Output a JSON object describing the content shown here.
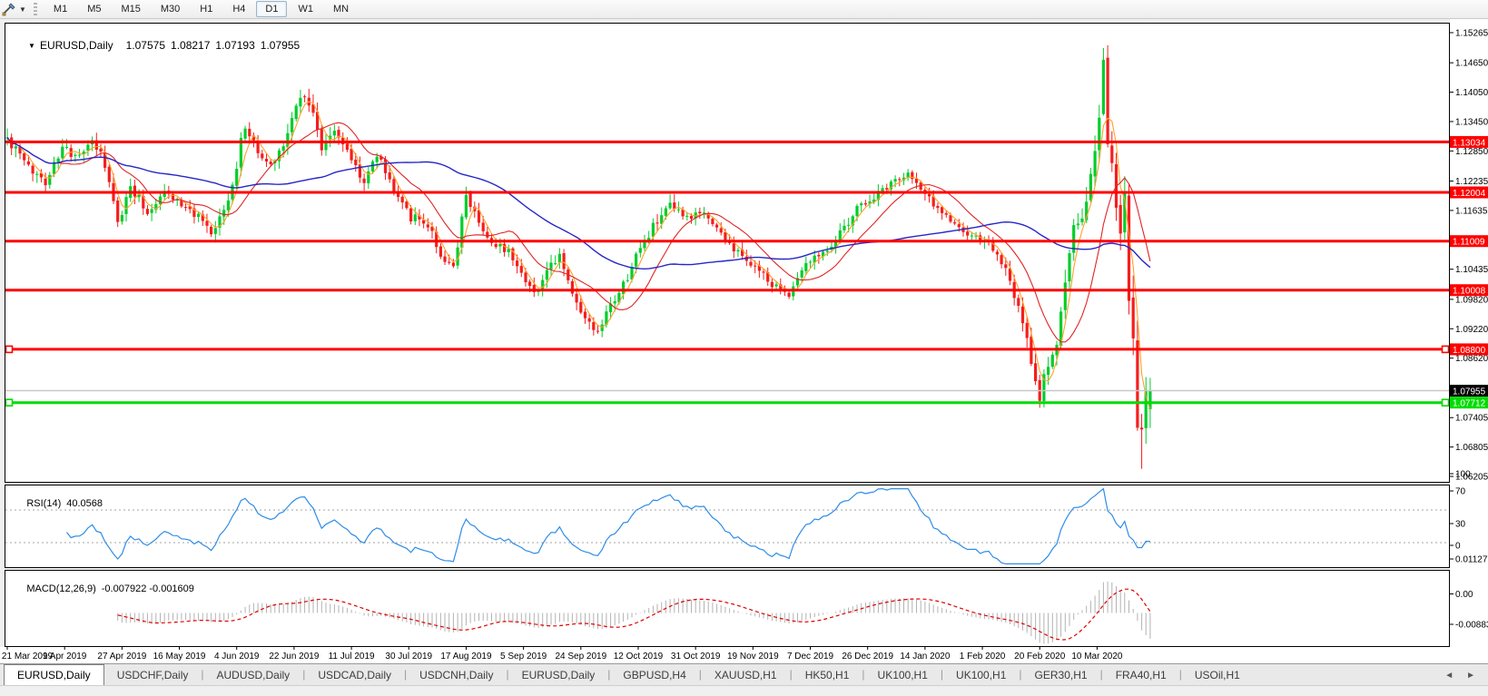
{
  "toolbar": {
    "caret": "▼",
    "periods": [
      "M1",
      "M5",
      "M15",
      "M30",
      "H1",
      "H4",
      "D1",
      "W1",
      "MN"
    ],
    "active_period": "D1"
  },
  "chart": {
    "caret": "▼",
    "title": "EURUSD,Daily",
    "ohlc": {
      "open": "1.07575",
      "high": "1.08217",
      "low": "1.07193",
      "close": "1.07955"
    },
    "colors": {
      "bull": "#00cd2c",
      "bear": "#f51d1d",
      "ma_fast": "#ffa228",
      "ma_medium": "#e02424",
      "ma_slow": "#2626c8",
      "sr_line": "#ff0000",
      "trend_line_green": "#00dc00",
      "price_line": "#c8c8c8",
      "rsi_line": "#2e8ce8",
      "macd_hist": "#b2b2b2",
      "macd_signal": "#e00000"
    }
  },
  "chart_data": {
    "type": "candlestick",
    "symbol": "EURUSD",
    "timeframe": "Daily",
    "title": "EURUSD,Daily 1.07575 1.08217 1.07193 1.07955",
    "last_candle": {
      "open": 1.07575,
      "high": 1.08217,
      "low": 1.07193,
      "close": 1.07955
    },
    "visible_range": {
      "price_max": 1.1545,
      "price_min": 1.06094
    },
    "extremes": {
      "spike_high": 1.1495,
      "crash_low": 1.0636
    },
    "n_candles": 270,
    "candles_per_date_tick": 13.5,
    "close_path_anchors": [
      [
        0,
        1.131,
        1.0
      ],
      [
        5,
        1.125,
        0.9
      ],
      [
        9,
        1.1225,
        0.9
      ],
      [
        13,
        1.129,
        0.8
      ],
      [
        17,
        1.127,
        0.7
      ],
      [
        20,
        1.131,
        0.8
      ],
      [
        23,
        1.1255,
        0.9
      ],
      [
        26,
        1.1135,
        1.0
      ],
      [
        29,
        1.1215,
        0.8
      ],
      [
        33,
        1.116,
        0.8
      ],
      [
        37,
        1.1205,
        0.7
      ],
      [
        41,
        1.1175,
        0.7
      ],
      [
        45,
        1.115,
        0.7
      ],
      [
        48,
        1.111,
        0.8
      ],
      [
        52,
        1.118,
        0.9
      ],
      [
        56,
        1.134,
        1.1
      ],
      [
        59,
        1.128,
        0.9
      ],
      [
        62,
        1.1255,
        0.8
      ],
      [
        66,
        1.132,
        0.9
      ],
      [
        69,
        1.1405,
        1.1
      ],
      [
        72,
        1.137,
        1.0
      ],
      [
        74,
        1.1285,
        0.9
      ],
      [
        77,
        1.133,
        0.8
      ],
      [
        81,
        1.127,
        0.8
      ],
      [
        84,
        1.122,
        0.8
      ],
      [
        87,
        1.128,
        0.7
      ],
      [
        90,
        1.1225,
        0.7
      ],
      [
        95,
        1.115,
        0.8
      ],
      [
        99,
        1.1135,
        0.7
      ],
      [
        103,
        1.1055,
        0.9
      ],
      [
        105,
        1.104,
        0.9
      ],
      [
        108,
        1.1195,
        0.9
      ],
      [
        111,
        1.1145,
        0.8
      ],
      [
        114,
        1.109,
        0.8
      ],
      [
        118,
        1.1085,
        0.7
      ],
      [
        121,
        1.104,
        0.7
      ],
      [
        124,
        1.0995,
        0.8
      ],
      [
        127,
        1.1035,
        0.8
      ],
      [
        130,
        1.1075,
        0.7
      ],
      [
        133,
        1.099,
        0.7
      ],
      [
        136,
        1.094,
        0.8
      ],
      [
        139,
        1.0905,
        0.9
      ],
      [
        141,
        1.095,
        0.9
      ],
      [
        144,
        1.099,
        0.8
      ],
      [
        148,
        1.107,
        0.9
      ],
      [
        152,
        1.113,
        0.8
      ],
      [
        156,
        1.117,
        0.8
      ],
      [
        160,
        1.1145,
        0.7
      ],
      [
        164,
        1.116,
        0.7
      ],
      [
        168,
        1.1115,
        0.7
      ],
      [
        172,
        1.1075,
        0.7
      ],
      [
        176,
        1.105,
        0.7
      ],
      [
        180,
        1.101,
        0.7
      ],
      [
        184,
        1.0995,
        0.7
      ],
      [
        188,
        1.106,
        0.7
      ],
      [
        192,
        1.108,
        0.7
      ],
      [
        196,
        1.1115,
        0.7
      ],
      [
        200,
        1.117,
        0.7
      ],
      [
        204,
        1.119,
        0.6
      ],
      [
        208,
        1.122,
        0.6
      ],
      [
        212,
        1.124,
        0.6
      ],
      [
        216,
        1.1195,
        0.6
      ],
      [
        220,
        1.116,
        0.6
      ],
      [
        224,
        1.1125,
        0.6
      ],
      [
        228,
        1.1105,
        0.6
      ],
      [
        231,
        1.1095,
        0.7
      ],
      [
        234,
        1.106,
        0.8
      ],
      [
        237,
        1.099,
        0.9
      ],
      [
        240,
        1.09,
        1.0
      ],
      [
        242,
        1.0805,
        1.1
      ],
      [
        243,
        1.0785,
        1.1
      ],
      [
        245,
        1.0855,
        1.0
      ],
      [
        247,
        1.088,
        1.0
      ],
      [
        249,
        1.1025,
        1.3
      ],
      [
        251,
        1.1135,
        1.5
      ],
      [
        253,
        1.114,
        1.6
      ],
      [
        256,
        1.1285,
        2.0
      ],
      [
        258,
        1.145,
        2.6
      ],
      [
        259,
        1.128,
        2.4
      ],
      [
        260,
        1.127,
        1.8
      ],
      [
        261,
        1.1185,
        1.8
      ],
      [
        262,
        1.1105,
        2.0
      ],
      [
        263,
        1.118,
        2.0
      ],
      [
        264,
        1.0995,
        2.2
      ],
      [
        265,
        1.0915,
        2.4
      ],
      [
        266,
        1.069,
        2.6
      ],
      [
        267,
        1.0727,
        2.2
      ],
      [
        268,
        1.0787,
        1.6
      ],
      [
        269,
        1.0796,
        1.2
      ]
    ],
    "price_axis_ticks": [
      "1.15265",
      "1.14650",
      "1.14050",
      "1.13450",
      "1.12850",
      "1.12235",
      "1.11635",
      "1.10435",
      "1.09820",
      "1.09220",
      "1.08620",
      "1.07405",
      "1.06805",
      "1.06205"
    ],
    "horizontal_lines": [
      {
        "price": 1.13034,
        "label": "1.13034",
        "color": "#ff0000",
        "handles": false
      },
      {
        "price": 1.12004,
        "label": "1.12004",
        "color": "#ff0000",
        "handles": false
      },
      {
        "price": 1.11009,
        "label": "1.11009",
        "color": "#ff0000",
        "handles": false
      },
      {
        "price": 1.10008,
        "label": "1.10008",
        "color": "#ff0000",
        "handles": false
      },
      {
        "price": 1.088,
        "label": "1.08800",
        "color": "#ff0000",
        "handles": true
      },
      {
        "price": 1.07712,
        "label": "1.07712",
        "color": "#00dc00",
        "handles": true
      }
    ],
    "current_price": {
      "value": 1.07955,
      "label": "1.07955"
    },
    "x_axis_dates": [
      "21 Mar 2019",
      "9 Apr 2019",
      "27 Apr 2019",
      "16 May 2019",
      "4 Jun 2019",
      "22 Jun 2019",
      "11 Jul 2019",
      "30 Jul 2019",
      "17 Aug 2019",
      "5 Sep 2019",
      "24 Sep 2019",
      "12 Oct 2019",
      "31 Oct 2019",
      "19 Nov 2019",
      "7 Dec 2019",
      "26 Dec 2019",
      "14 Jan 2020",
      "1 Feb 2020",
      "20 Feb 2020",
      "10 Mar 2020"
    ],
    "indicators": {
      "moving_averages": [
        {
          "name": "fast",
          "period": 4,
          "color": "#ffa228"
        },
        {
          "name": "medium",
          "period": 13,
          "color": "#e02424"
        },
        {
          "name": "slow",
          "period": 50,
          "color": "#2626c8"
        }
      ],
      "rsi": {
        "label": "RSI(14)",
        "value": "40.0568",
        "period": 14,
        "scale_ticks": [
          "100",
          "70",
          "30",
          "0"
        ],
        "levels": [
          70,
          30
        ],
        "color": "#2e8ce8"
      },
      "macd": {
        "label": "MACD(12,26,9)",
        "values": "-0.007922 -0.001609",
        "fast": 12,
        "slow": 26,
        "signal": 9,
        "scale_max": "0.011277",
        "scale_zero": "0.00",
        "scale_min": "-0.008837",
        "range": [
          -0.008837,
          0.011277
        ]
      }
    }
  },
  "tabs": {
    "items": [
      "EURUSD,Daily",
      "USDCHF,Daily",
      "AUDUSD,Daily",
      "USDCAD,Daily",
      "USDCNH,Daily",
      "EURUSD,Daily",
      "GBPUSD,H4",
      "XAUUSD,H1",
      "HK50,H1",
      "UK100,H1",
      "UK100,H1",
      "GER30,H1",
      "FRA40,H1",
      "USOil,H1"
    ],
    "active_index": 0,
    "scroll_left": "◄",
    "scroll_right": "►"
  }
}
